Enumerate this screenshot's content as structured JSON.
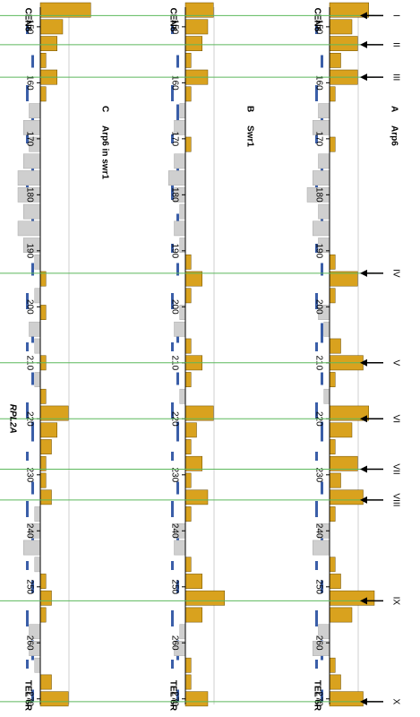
{
  "chart_data": {
    "type": "bar",
    "start_label": "CEN6",
    "end_label": "TEL 6R",
    "x": [
      147,
      150,
      153,
      156,
      159,
      162,
      165,
      168,
      171,
      174,
      177,
      180,
      183,
      186,
      189,
      192,
      195,
      198,
      201,
      204,
      207,
      210,
      213,
      216,
      219,
      222,
      225,
      228,
      231,
      234,
      237,
      240,
      243,
      246,
      249,
      252,
      255,
      258,
      261,
      264,
      267,
      270
    ],
    "xlim": [
      146.5,
      271
    ],
    "xticks": [
      150,
      160,
      170,
      180,
      190,
      200,
      210,
      220,
      230,
      240,
      250,
      260,
      270
    ],
    "ylim": [
      -3,
      5
    ],
    "color": "#d9a21e",
    "negative_color": "#cfcfcf",
    "line_color": "#5cb85c",
    "panels": [
      {
        "label": "A",
        "title": "Arp6",
        "values": [
          3.5,
          2,
          2.5,
          1,
          2.5,
          0.5,
          -1,
          -1.5,
          0.5,
          -1,
          -1.5,
          -2,
          -1,
          -1.5,
          -1,
          0.5,
          2.5,
          0.5,
          -1,
          -0.5,
          1,
          3,
          0.5,
          -0.5,
          3.5,
          2,
          0.5,
          2.5,
          1,
          3,
          0.5,
          -1,
          -1.5,
          0.5,
          1,
          4,
          2,
          -1,
          -1.5,
          0.5,
          1,
          3
        ]
      },
      {
        "label": "B",
        "title": "Swr1",
        "values": [
          2.5,
          2,
          1.5,
          0.5,
          2,
          0.5,
          -0.5,
          -1,
          0.5,
          -1,
          -1.5,
          -1,
          -0.5,
          -1,
          -0.5,
          0.5,
          1.5,
          0.5,
          -0.5,
          -1,
          0.5,
          1.5,
          0.5,
          -0.5,
          2.5,
          1,
          0.5,
          1.5,
          0.5,
          2,
          0.5,
          -1,
          -1,
          0.5,
          1.5,
          3.5,
          1.5,
          -0.5,
          -1,
          0.5,
          0.5,
          2
        ]
      },
      {
        "label": "C",
        "title": "Arp6 in swr1",
        "values": [
          4.5,
          2,
          1.5,
          0.5,
          1.5,
          0.5,
          -1,
          -1.5,
          -1,
          -1.5,
          -2,
          -2,
          -1.5,
          -2,
          -1.5,
          -0.5,
          0.5,
          -0.5,
          0.5,
          -1,
          -0.5,
          0.5,
          -0.5,
          0.5,
          2.5,
          1.5,
          1,
          0.5,
          0.5,
          1,
          -0.5,
          -1,
          -1.5,
          -0.5,
          0.5,
          1,
          0.5,
          -1,
          -1,
          -0.5,
          1,
          2.5
        ]
      }
    ],
    "arrows": [
      {
        "label": "I",
        "x": 148
      },
      {
        "label": "II",
        "x": 153.2
      },
      {
        "label": "III",
        "x": 159
      },
      {
        "label": "IV",
        "x": 194
      },
      {
        "label": "V",
        "x": 210
      },
      {
        "label": "VI",
        "x": 220
      },
      {
        "label": "VII",
        "x": 229
      },
      {
        "label": "VIII",
        "x": 234.5
      },
      {
        "label": "IX",
        "x": 252.5
      },
      {
        "label": "X",
        "x": 270.5
      }
    ],
    "gene_label": {
      "text": "RPL2A",
      "x": 220
    }
  }
}
